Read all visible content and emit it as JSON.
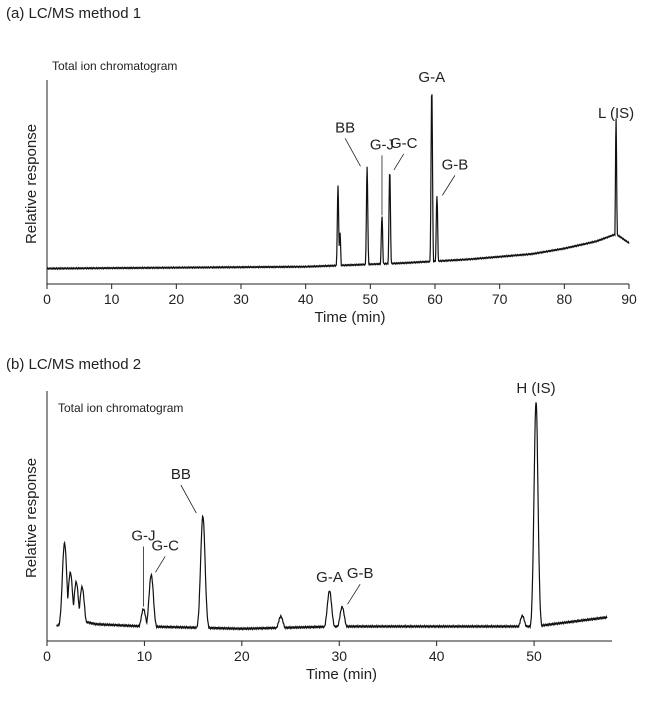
{
  "chart_data": [
    {
      "type": "line",
      "panel_label": "(a) LC/MS method 1",
      "title": "Total ion chromatogram",
      "xlabel": "Time (min)",
      "ylabel": "Relative response",
      "xlim": [
        0,
        90
      ],
      "x_ticks": [
        0,
        10,
        20,
        30,
        40,
        50,
        60,
        70,
        80,
        90
      ],
      "grid": false,
      "baseline": [
        [
          0,
          3
        ],
        [
          40,
          4
        ],
        [
          55,
          6
        ],
        [
          65,
          8
        ],
        [
          75,
          11
        ],
        [
          80,
          14
        ],
        [
          85,
          18
        ],
        [
          88,
          22
        ],
        [
          90,
          17
        ]
      ],
      "peaks": [
        {
          "x": 45.0,
          "y": 47,
          "label": ""
        },
        {
          "x": 45.3,
          "y": 22,
          "label": ""
        },
        {
          "x": 49.5,
          "y": 57,
          "label": "BB"
        },
        {
          "x": 51.8,
          "y": 30,
          "label": "G-J"
        },
        {
          "x": 53.0,
          "y": 55,
          "label": "G-C"
        },
        {
          "x": 59.5,
          "y": 100,
          "label": "G-A"
        },
        {
          "x": 60.3,
          "y": 41,
          "label": "G-B"
        },
        {
          "x": 88.0,
          "y": 79,
          "label": "L (IS)"
        }
      ]
    },
    {
      "type": "line",
      "panel_label": "(b) LC/MS method 2",
      "title": "Total ion chromatogram",
      "xlabel": "Time (min)",
      "ylabel": "Relative response",
      "xlim": [
        0,
        58
      ],
      "x_ticks": [
        0,
        10,
        20,
        30,
        40,
        50
      ],
      "grid": false,
      "baseline": [
        [
          1,
          2
        ],
        [
          2,
          6
        ],
        [
          5,
          3
        ],
        [
          10,
          2
        ],
        [
          20,
          1
        ],
        [
          30,
          2
        ],
        [
          40,
          2
        ],
        [
          50,
          2
        ],
        [
          57.5,
          6
        ]
      ],
      "peaks": [
        {
          "x": 1.8,
          "y": 37,
          "label": ""
        },
        {
          "x": 2.4,
          "y": 24,
          "label": ""
        },
        {
          "x": 3.0,
          "y": 20,
          "label": ""
        },
        {
          "x": 3.6,
          "y": 18,
          "label": ""
        },
        {
          "x": 9.9,
          "y": 9,
          "label": "G-J"
        },
        {
          "x": 10.7,
          "y": 24,
          "label": "G-C"
        },
        {
          "x": 16.0,
          "y": 50,
          "label": "BB"
        },
        {
          "x": 24.0,
          "y": 6,
          "label": ""
        },
        {
          "x": 29.0,
          "y": 17,
          "label": "G-A"
        },
        {
          "x": 30.3,
          "y": 10,
          "label": "G-B"
        },
        {
          "x": 48.8,
          "y": 6,
          "label": ""
        },
        {
          "x": 50.2,
          "y": 100,
          "label": "H (IS)"
        }
      ]
    }
  ]
}
